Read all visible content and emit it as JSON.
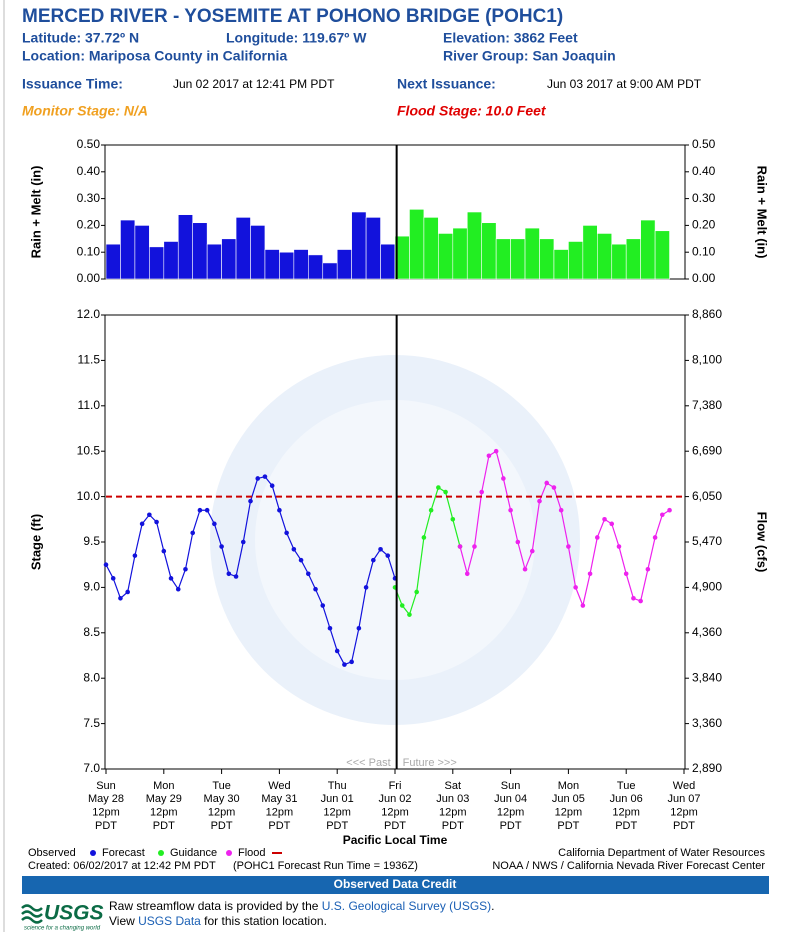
{
  "header": {
    "title": "MERCED RIVER - YOSEMITE AT POHONO BRIDGE (POHC1)",
    "latitude": "Latitude: 37.72º N",
    "longitude": "Longitude: 119.67º W",
    "elevation": "Elevation: 3862 Feet",
    "location": "Location: Mariposa County in California",
    "river_group": "River Group: San Joaquin",
    "issuance_label": "Issuance Time:",
    "issuance": "Jun 02 2017 at 12:41 PM PDT",
    "next_label": "Next Issuance:",
    "next": "Jun 03 2017 at 9:00 AM PDT",
    "monitor_stage": "Monitor Stage: N/A",
    "flood_stage": "Flood Stage: 10.0 Feet"
  },
  "chart_data": [
    {
      "type": "bar",
      "ylabel": "Rain + Melt (in)",
      "y2label": "Rain + Melt (in)",
      "xlim": [
        "2017-05-28T12:00",
        "2017-06-07T12:00"
      ],
      "ylim": [
        0,
        0.5
      ],
      "yticks": [
        {
          "value": 0,
          "label": "0.00"
        },
        {
          "value": 0.1,
          "label": "0.10"
        },
        {
          "value": 0.2,
          "label": "0.20"
        },
        {
          "value": 0.3,
          "label": "0.30"
        },
        {
          "value": 0.4,
          "label": "0.40"
        },
        {
          "value": 0.5,
          "label": "0.50"
        }
      ],
      "y2lim": [
        0,
        0.5
      ],
      "y2ticks": [
        {
          "value": 0,
          "label": "0.00"
        },
        {
          "value": 0.1,
          "label": "0.10"
        },
        {
          "value": 0.2,
          "label": "0.20"
        },
        {
          "value": 0.3,
          "label": "0.30"
        },
        {
          "value": 0.4,
          "label": "0.40"
        },
        {
          "value": 0.5,
          "label": "0.50"
        }
      ],
      "now": "2017-06-02T12:41",
      "x": [
        "2017-05-28T12:00",
        "2017-05-28T18:00",
        "2017-05-29T00:00",
        "2017-05-29T06:00",
        "2017-05-29T12:00",
        "2017-05-29T18:00",
        "2017-05-30T00:00",
        "2017-05-30T06:00",
        "2017-05-30T12:00",
        "2017-05-30T18:00",
        "2017-05-31T00:00",
        "2017-05-31T06:00",
        "2017-05-31T12:00",
        "2017-05-31T18:00",
        "2017-06-01T00:00",
        "2017-06-01T06:00",
        "2017-06-01T12:00",
        "2017-06-01T18:00",
        "2017-06-02T00:00",
        "2017-06-02T06:00",
        "2017-06-02T12:00",
        "2017-06-02T18:00",
        "2017-06-03T00:00",
        "2017-06-03T06:00",
        "2017-06-03T12:00",
        "2017-06-03T18:00",
        "2017-06-04T00:00",
        "2017-06-04T06:00",
        "2017-06-04T12:00",
        "2017-06-04T18:00",
        "2017-06-05T00:00",
        "2017-06-05T06:00",
        "2017-06-05T12:00",
        "2017-06-05T18:00",
        "2017-06-06T00:00",
        "2017-06-06T06:00",
        "2017-06-06T12:00",
        "2017-06-06T18:00",
        "2017-06-07T00:00"
      ],
      "series": [
        {
          "color": "#1212dc",
          "values": [
            0.13,
            0.22,
            0.2,
            0.12,
            0.14,
            0.24,
            0.21,
            0.13,
            0.15,
            0.23,
            0.2,
            0.11,
            0.1,
            0.11,
            0.09,
            0.06,
            0.11,
            0.25,
            0.23,
            0.13,
            null,
            null,
            null,
            null,
            null,
            null,
            null,
            null,
            null,
            null,
            null,
            null,
            null,
            null,
            null,
            null,
            null,
            null,
            null
          ]
        },
        {
          "color": "#22ee22",
          "values": [
            null,
            null,
            null,
            null,
            null,
            null,
            null,
            null,
            null,
            null,
            null,
            null,
            null,
            null,
            null,
            null,
            null,
            null,
            null,
            null,
            0.16,
            0.26,
            0.23,
            0.17,
            0.19,
            0.25,
            0.21,
            0.15,
            0.15,
            0.19,
            0.15,
            0.11,
            0.14,
            0.2,
            0.17,
            0.13,
            0.15,
            0.22,
            0.18
          ]
        }
      ]
    },
    {
      "type": "line",
      "ylabel": "Stage (ft)",
      "y2label": "Flow (cfs)",
      "xlabel": "Pacific Local Time",
      "xlim": [
        "2017-05-28T12:00",
        "2017-06-07T12:00"
      ],
      "xticks": [
        {
          "value": "2017-05-28T12:00",
          "label": [
            "Sun",
            "May 28",
            "12pm",
            "PDT"
          ]
        },
        {
          "value": "2017-05-29T12:00",
          "label": [
            "Mon",
            "May 29",
            "12pm",
            "PDT"
          ]
        },
        {
          "value": "2017-05-30T12:00",
          "label": [
            "Tue",
            "May 30",
            "12pm",
            "PDT"
          ]
        },
        {
          "value": "2017-05-31T12:00",
          "label": [
            "Wed",
            "May 31",
            "12pm",
            "PDT"
          ]
        },
        {
          "value": "2017-06-01T12:00",
          "label": [
            "Thu",
            "Jun 01",
            "12pm",
            "PDT"
          ]
        },
        {
          "value": "2017-06-02T12:00",
          "label": [
            "Fri",
            "Jun 02",
            "12pm",
            "PDT"
          ]
        },
        {
          "value": "2017-06-03T12:00",
          "label": [
            "Sat",
            "Jun 03",
            "12pm",
            "PDT"
          ]
        },
        {
          "value": "2017-06-04T12:00",
          "label": [
            "Sun",
            "Jun 04",
            "12pm",
            "PDT"
          ]
        },
        {
          "value": "2017-06-05T12:00",
          "label": [
            "Mon",
            "Jun 05",
            "12pm",
            "PDT"
          ]
        },
        {
          "value": "2017-06-06T12:00",
          "label": [
            "Tue",
            "Jun 06",
            "12pm",
            "PDT"
          ]
        },
        {
          "value": "2017-06-07T12:00",
          "label": [
            "Wed",
            "Jun 07",
            "12pm",
            "PDT"
          ]
        }
      ],
      "ylim": [
        7,
        12
      ],
      "yticks": [
        {
          "value": 7,
          "label": "7.0"
        },
        7.5,
        {
          "value": 8,
          "label": "8.0"
        },
        8.5,
        {
          "value": 9,
          "label": "9.0"
        },
        9.5,
        {
          "value": 10,
          "label": "10.0"
        },
        10.5,
        {
          "value": 11,
          "label": "11.0"
        },
        11.5,
        {
          "value": 12,
          "label": "12.0"
        }
      ],
      "y2lim": [
        2890,
        8860
      ],
      "y2ticks": [
        {
          "value": 2890,
          "label": "2,890"
        },
        {
          "value": 3360,
          "label": "3,360"
        },
        {
          "value": 3840,
          "label": "3,840"
        },
        {
          "value": 4360,
          "label": "4,360"
        },
        {
          "value": 4900,
          "label": "4,900"
        },
        {
          "value": 5470,
          "label": "5,470"
        },
        {
          "value": 6050,
          "label": "6,050"
        },
        {
          "value": 6690,
          "label": "6,690"
        },
        {
          "value": 7380,
          "label": "7,380"
        },
        {
          "value": 8100,
          "label": "8,100"
        },
        {
          "value": 8860,
          "label": "8,860"
        }
      ],
      "now": "2017-06-02T12:41",
      "annotations": [
        "<<< Past",
        "Future >>>"
      ],
      "flood": {
        "name": "Flood",
        "value": 10.0,
        "color": "#cc0000"
      },
      "x": [
        "2017-05-28T12:00",
        "2017-05-28T15:00",
        "2017-05-28T18:00",
        "2017-05-28T21:00",
        "2017-05-29T00:00",
        "2017-05-29T03:00",
        "2017-05-29T06:00",
        "2017-05-29T09:00",
        "2017-05-29T12:00",
        "2017-05-29T15:00",
        "2017-05-29T18:00",
        "2017-05-29T21:00",
        "2017-05-30T00:00",
        "2017-05-30T03:00",
        "2017-05-30T06:00",
        "2017-05-30T09:00",
        "2017-05-30T12:00",
        "2017-05-30T15:00",
        "2017-05-30T18:00",
        "2017-05-30T21:00",
        "2017-05-31T00:00",
        "2017-05-31T03:00",
        "2017-05-31T06:00",
        "2017-05-31T09:00",
        "2017-05-31T12:00",
        "2017-05-31T15:00",
        "2017-05-31T18:00",
        "2017-05-31T21:00",
        "2017-06-01T00:00",
        "2017-06-01T03:00",
        "2017-06-01T06:00",
        "2017-06-01T09:00",
        "2017-06-01T12:00",
        "2017-06-01T15:00",
        "2017-06-01T18:00",
        "2017-06-01T21:00",
        "2017-06-02T00:00",
        "2017-06-02T03:00",
        "2017-06-02T06:00",
        "2017-06-02T09:00",
        "2017-06-02T12:00",
        "2017-06-02T15:00",
        "2017-06-02T18:00",
        "2017-06-02T21:00",
        "2017-06-03T00:00",
        "2017-06-03T03:00",
        "2017-06-03T06:00",
        "2017-06-03T09:00",
        "2017-06-03T12:00",
        "2017-06-03T15:00",
        "2017-06-03T18:00",
        "2017-06-03T21:00",
        "2017-06-04T00:00",
        "2017-06-04T03:00",
        "2017-06-04T06:00",
        "2017-06-04T09:00",
        "2017-06-04T12:00",
        "2017-06-04T15:00",
        "2017-06-04T18:00",
        "2017-06-04T21:00",
        "2017-06-05T00:00",
        "2017-06-05T03:00",
        "2017-06-05T06:00",
        "2017-06-05T09:00",
        "2017-06-05T12:00",
        "2017-06-05T15:00",
        "2017-06-05T18:00",
        "2017-06-05T21:00",
        "2017-06-06T00:00",
        "2017-06-06T03:00",
        "2017-06-06T06:00",
        "2017-06-06T09:00",
        "2017-06-06T12:00",
        "2017-06-06T15:00",
        "2017-06-06T18:00",
        "2017-06-06T21:00",
        "2017-06-07T00:00",
        "2017-06-07T03:00",
        "2017-06-07T06:00"
      ],
      "series": [
        {
          "name": "Observed",
          "color": "#1212dc",
          "values": [
            9.25,
            9.1,
            8.88,
            8.95,
            9.35,
            9.7,
            9.8,
            9.72,
            9.4,
            9.1,
            8.98,
            9.2,
            9.6,
            9.85,
            9.85,
            9.7,
            9.45,
            9.15,
            9.12,
            9.5,
            9.95,
            10.2,
            10.22,
            10.12,
            9.85,
            9.6,
            9.42,
            9.3,
            9.15,
            8.98,
            8.8,
            8.55,
            8.3,
            8.15,
            8.18,
            8.55,
            9.0,
            9.3,
            9.42,
            9.35,
            9.1,
            null,
            null,
            null,
            null,
            null,
            null,
            null,
            null,
            null,
            null,
            null,
            null,
            null,
            null,
            null,
            null,
            null,
            null,
            null,
            null,
            null,
            null,
            null,
            null,
            null,
            null,
            null,
            null,
            null,
            null,
            null,
            null,
            null,
            null,
            null,
            null,
            null,
            null
          ]
        },
        {
          "name": "Forecast",
          "color": "#22ee22",
          "values": [
            null,
            null,
            null,
            null,
            null,
            null,
            null,
            null,
            null,
            null,
            null,
            null,
            null,
            null,
            null,
            null,
            null,
            null,
            null,
            null,
            null,
            null,
            null,
            null,
            null,
            null,
            null,
            null,
            null,
            null,
            null,
            null,
            null,
            null,
            null,
            null,
            null,
            null,
            null,
            null,
            9.0,
            8.8,
            8.7,
            8.95,
            9.55,
            9.85,
            10.1,
            10.05,
            9.75,
            9.45,
            null,
            null,
            null,
            null,
            null,
            null,
            null,
            null,
            null,
            null,
            null,
            null,
            null,
            null,
            null,
            null,
            null,
            null,
            null,
            null,
            null,
            null,
            null,
            null,
            null,
            null,
            null,
            null,
            null
          ]
        },
        {
          "name": "Guidance",
          "color": "#ee22ee",
          "values": [
            null,
            null,
            null,
            null,
            null,
            null,
            null,
            null,
            null,
            null,
            null,
            null,
            null,
            null,
            null,
            null,
            null,
            null,
            null,
            null,
            null,
            null,
            null,
            null,
            null,
            null,
            null,
            null,
            null,
            null,
            null,
            null,
            null,
            null,
            null,
            null,
            null,
            null,
            null,
            null,
            null,
            null,
            null,
            null,
            null,
            null,
            null,
            null,
            null,
            9.45,
            9.15,
            9.45,
            10.05,
            10.45,
            10.5,
            10.2,
            9.85,
            9.5,
            9.2,
            9.4,
            9.95,
            10.15,
            10.1,
            9.85,
            9.45,
            9.0,
            8.8,
            9.15,
            9.55,
            9.75,
            9.7,
            9.45,
            9.15,
            8.88,
            8.85,
            9.2,
            9.55,
            9.8,
            9.85
          ]
        }
      ]
    }
  ],
  "footer": {
    "created": "Created: 06/02/2017 at 12:42 PM PDT",
    "run_time": "(POHC1 Forecast Run Time = 1936Z)",
    "credit_1": "California Department of Water Resources",
    "credit_2": "NOAA / NWS / California Nevada River Forecast Center",
    "credit_bar": "Observed Data Credit",
    "logo": "USGS",
    "logo_tagline": "science for a changing world",
    "line_1": [
      "Raw streamflow data is provided by the ",
      "U.S. Geological Survey (USGS)",
      "."
    ],
    "line_2": [
      "View ",
      "USGS Data",
      " for this station location."
    ]
  }
}
